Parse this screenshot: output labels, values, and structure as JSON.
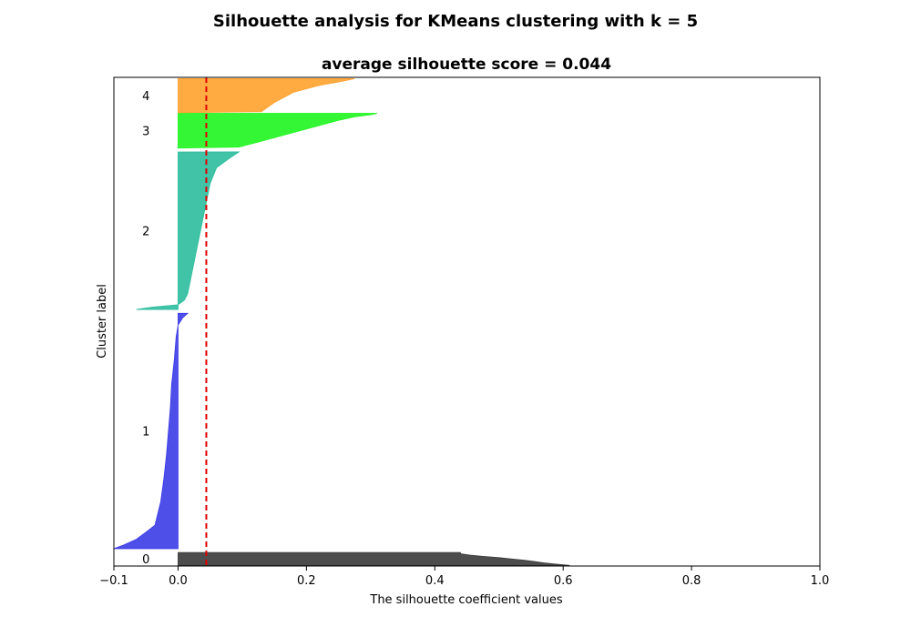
{
  "figure": {
    "suptitle": "Silhouette analysis for KMeans clustering with k = 5"
  },
  "chart_data": {
    "type": "area",
    "orientation": "horizontal",
    "title": "average silhouette score = 0.044",
    "xlabel": "The silhouette coefficient values",
    "ylabel": "Cluster label",
    "xlim": [
      -0.1,
      1.0
    ],
    "ylim": [
      0,
      760
    ],
    "x_ticks": [
      -0.1,
      0.0,
      0.2,
      0.4,
      0.6,
      0.8,
      1.0
    ],
    "x_tick_labels": [
      "−0.1",
      "0.0",
      "0.2",
      "0.4",
      "0.6",
      "0.8",
      "1.0"
    ],
    "grid": false,
    "reference_line": {
      "x": 0.044,
      "color": "#e00000",
      "style": "dashed"
    },
    "series": [
      {
        "name": "0",
        "color": "#3a3a3a",
        "y_start": 1,
        "y_end": 21,
        "profile": [
          [
            0,
            0.61
          ],
          [
            0.05,
            0.6
          ],
          [
            0.12,
            0.585
          ],
          [
            0.2,
            0.57
          ],
          [
            0.3,
            0.555
          ],
          [
            0.4,
            0.54
          ],
          [
            0.5,
            0.52
          ],
          [
            0.6,
            0.5
          ],
          [
            0.7,
            0.475
          ],
          [
            0.8,
            0.455
          ],
          [
            0.9,
            0.44
          ],
          [
            1.0,
            0.44
          ]
        ]
      },
      {
        "name": "1",
        "color": "#3b3be6",
        "y_start": 27,
        "y_end": 393,
        "profile": [
          [
            0,
            -0.1
          ],
          [
            0.015,
            -0.085
          ],
          [
            0.04,
            -0.065
          ],
          [
            0.07,
            -0.05
          ],
          [
            0.1,
            -0.036
          ],
          [
            0.2,
            -0.027
          ],
          [
            0.3,
            -0.022
          ],
          [
            0.4,
            -0.018
          ],
          [
            0.5,
            -0.015
          ],
          [
            0.6,
            -0.012
          ],
          [
            0.7,
            -0.01
          ],
          [
            0.8,
            -0.006
          ],
          [
            0.9,
            -0.003
          ],
          [
            0.95,
            0.0
          ],
          [
            0.98,
            0.007
          ],
          [
            1.0,
            0.015
          ]
        ]
      },
      {
        "name": "2",
        "color": "#2bbd9c",
        "y_start": 399,
        "y_end": 644,
        "profile": [
          [
            0,
            -0.065
          ],
          [
            0.015,
            -0.04
          ],
          [
            0.03,
            0.0
          ],
          [
            0.06,
            0.01
          ],
          [
            0.1,
            0.015
          ],
          [
            0.2,
            0.02
          ],
          [
            0.3,
            0.025
          ],
          [
            0.4,
            0.03
          ],
          [
            0.5,
            0.035
          ],
          [
            0.6,
            0.04
          ],
          [
            0.7,
            0.045
          ],
          [
            0.8,
            0.05
          ],
          [
            0.9,
            0.06
          ],
          [
            0.96,
            0.08
          ],
          [
            1.0,
            0.095
          ]
        ]
      },
      {
        "name": "3",
        "color": "#1ef51e",
        "y_start": 650,
        "y_end": 704,
        "profile": [
          [
            0,
            0.0
          ],
          [
            0.03,
            0.095
          ],
          [
            0.2,
            0.13
          ],
          [
            0.4,
            0.17
          ],
          [
            0.6,
            0.21
          ],
          [
            0.8,
            0.25
          ],
          [
            0.9,
            0.275
          ],
          [
            0.96,
            0.3
          ],
          [
            1.0,
            0.31
          ]
        ]
      },
      {
        "name": "4",
        "color": "#ffa22e",
        "y_start": 705,
        "y_end": 758,
        "profile": [
          [
            0,
            0.0
          ],
          [
            0.03,
            0.13
          ],
          [
            0.3,
            0.15
          ],
          [
            0.6,
            0.18
          ],
          [
            0.8,
            0.22
          ],
          [
            0.9,
            0.25
          ],
          [
            1.0,
            0.275
          ]
        ]
      }
    ]
  }
}
